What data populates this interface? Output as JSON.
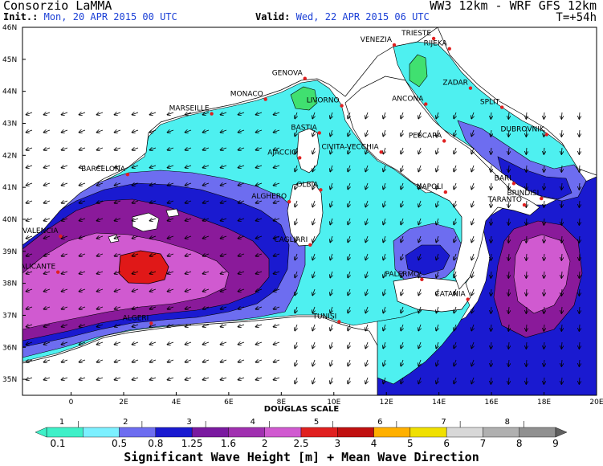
{
  "header": {
    "brand": "Consorzio LaMMA",
    "model": "WW3 12km - WRF GFS 12km",
    "init_label": "Init.:",
    "init_value": "Mon, 20 APR 2015  00 UTC",
    "valid_label": "Valid:",
    "valid_value": "Wed, 22 APR 2015  06 UTC",
    "lead_time": "T=+54h"
  },
  "axes": {
    "lat_ticks": [
      "46N",
      "45N",
      "44N",
      "43N",
      "42N",
      "41N",
      "40N",
      "39N",
      "38N",
      "37N",
      "36N",
      "35N"
    ],
    "lon_ticks": [
      "0",
      "2E",
      "4E",
      "6E",
      "8E",
      "10E",
      "12E",
      "14E",
      "16E",
      "18E",
      "20E"
    ]
  },
  "cities": [
    {
      "name": "TRIESTE",
      "lon": 13.8,
      "lat": 45.65
    },
    {
      "name": "VENEZIA",
      "lon": 12.3,
      "lat": 45.45
    },
    {
      "name": "RIJEKA",
      "lon": 14.4,
      "lat": 45.33
    },
    {
      "name": "GENOVA",
      "lon": 8.9,
      "lat": 44.4
    },
    {
      "name": "MONACO",
      "lon": 7.4,
      "lat": 43.75
    },
    {
      "name": "MARSEILLE",
      "lon": 5.35,
      "lat": 43.3
    },
    {
      "name": "LIVORNO",
      "lon": 10.3,
      "lat": 43.55
    },
    {
      "name": "ANCONA",
      "lon": 13.5,
      "lat": 43.6
    },
    {
      "name": "ZADAR",
      "lon": 15.2,
      "lat": 44.1
    },
    {
      "name": "SPLIT",
      "lon": 16.4,
      "lat": 43.5
    },
    {
      "name": "DUBROVNIK",
      "lon": 18.1,
      "lat": 42.65
    },
    {
      "name": "PESCARA",
      "lon": 14.2,
      "lat": 42.45
    },
    {
      "name": "BASTIA",
      "lon": 9.45,
      "lat": 42.7
    },
    {
      "name": "AJACCIO",
      "lon": 8.7,
      "lat": 41.92
    },
    {
      "name": "CIVITA-VECCHIA",
      "lon": 11.8,
      "lat": 42.1
    },
    {
      "name": "BARCELONA",
      "lon": 2.15,
      "lat": 41.4
    },
    {
      "name": "OLBIA",
      "lon": 9.5,
      "lat": 40.92
    },
    {
      "name": "ALGHERO",
      "lon": 8.3,
      "lat": 40.55
    },
    {
      "name": "NAPOLI",
      "lon": 14.25,
      "lat": 40.85
    },
    {
      "name": "BARI",
      "lon": 16.85,
      "lat": 41.12
    },
    {
      "name": "BRINDISI",
      "lon": 17.9,
      "lat": 40.65
    },
    {
      "name": "TARANTO",
      "lon": 17.25,
      "lat": 40.45
    },
    {
      "name": "VALENCIA",
      "lon": -0.4,
      "lat": 39.47
    },
    {
      "name": "CAGLIARI",
      "lon": 9.1,
      "lat": 39.2
    },
    {
      "name": "ALICANTE",
      "lon": -0.5,
      "lat": 38.35
    },
    {
      "name": "PALERMO",
      "lon": 13.35,
      "lat": 38.12
    },
    {
      "name": "CATANIA",
      "lon": 15.1,
      "lat": 37.5
    },
    {
      "name": "TUNISI",
      "lon": 10.2,
      "lat": 36.8
    },
    {
      "name": "ALGERI",
      "lon": 3.05,
      "lat": 36.75
    }
  ],
  "legend": {
    "douglas_title": "DOUGLAS SCALE",
    "douglas_labels": [
      "1",
      "2",
      "3",
      "4",
      "5",
      "6",
      "7",
      "8"
    ],
    "height_labels": [
      "0.1",
      "0.5",
      "0.8",
      "1.25",
      "1.6",
      "2",
      "2.5",
      "3",
      "4",
      "5",
      "6",
      "7",
      "8",
      "9"
    ],
    "colors": [
      "#3ff0c8",
      "#7cf0ff",
      "#6d6df0",
      "#1a1ad0",
      "#7a1aa0",
      "#a030b0",
      "#d05ad0",
      "#e02020",
      "#c01010",
      "#ffb000",
      "#f0e000",
      "#d8d8d8",
      "#b0b0b0",
      "#909090"
    ],
    "title": "Significant Wave Height [m] + Mean Wave Direction"
  },
  "palette": {
    "land": "#ffffff",
    "sea_calm": "#4ef0f0",
    "sea_low": "#6d6df0",
    "sea_mid": "#1a1ad0",
    "sea_high": "#8a1a9a",
    "sea_higher": "#d05ad0",
    "peak": "#e01818",
    "green": "#40e070"
  }
}
